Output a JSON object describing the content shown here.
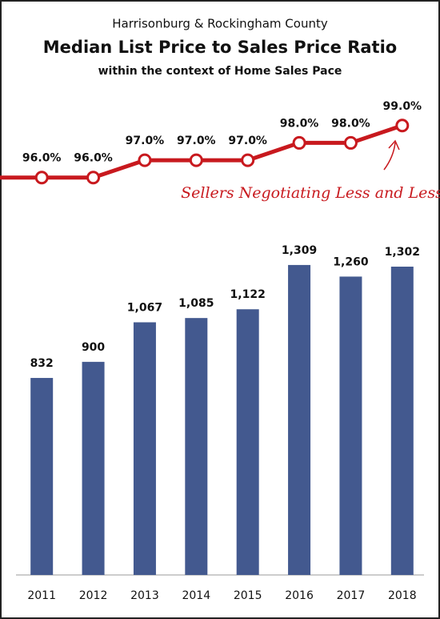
{
  "header": {
    "supertitle": "Harrisonburg & Rockingham County",
    "title": "Median List Price to Sales Price Ratio",
    "subtitle": "within the context of Home Sales Pace"
  },
  "chart_data": [
    {
      "type": "line",
      "values": [
        96.0,
        96.0,
        97.0,
        97.0,
        97.0,
        98.0,
        98.0,
        99.0
      ],
      "value_labels": [
        "96.0%",
        "96.0%",
        "97.0%",
        "97.0%",
        "97.0%",
        "98.0%",
        "98.0%",
        "99.0%"
      ],
      "color": "#c8191e",
      "ylim": [
        94,
        100.7
      ],
      "annotation": "Sellers Negotiating Less and Less"
    },
    {
      "type": "bar",
      "categories": [
        "2011",
        "2012",
        "2013",
        "2014",
        "2015",
        "2016",
        "2017",
        "2018"
      ],
      "values": [
        832,
        900,
        1067,
        1085,
        1122,
        1309,
        1260,
        1302
      ],
      "value_labels": [
        "832",
        "900",
        "1,067",
        "1,085",
        "1,122",
        "1,309",
        "1,260",
        "1,302"
      ],
      "color": "#43598f",
      "ylim": [
        0,
        1400
      ]
    }
  ]
}
